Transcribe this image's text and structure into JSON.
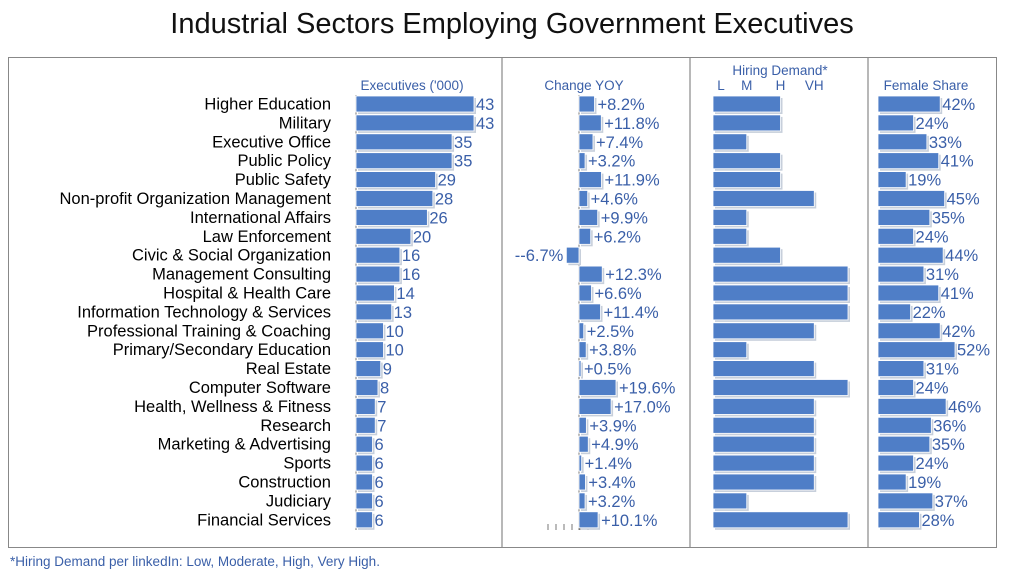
{
  "chart_data": {
    "type": "bar",
    "title": "Industrial Sectors Employing Government Executives",
    "footnote": "*Hiring Demand per linkedIn: Low, Moderate, High, Very High.",
    "categories": [
      "Higher Education",
      "Military",
      "Executive Office",
      "Public Policy",
      "Public Safety",
      "Non-profit Organization Management",
      "International Affairs",
      "Law Enforcement",
      "Civic & Social Organization",
      "Management Consulting",
      "Hospital & Health Care",
      "Information Technology & Services",
      "Professional Training & Coaching",
      "Primary/Secondary Education",
      "Real Estate",
      "Computer Software",
      "Health, Wellness & Fitness",
      "Research",
      "Marketing & Advertising",
      "Sports",
      "Construction",
      "Judiciary",
      "Financial Services"
    ],
    "series": [
      {
        "name": "Executives ('000)",
        "values": [
          43,
          43,
          35,
          35,
          29,
          28,
          26,
          20,
          16,
          16,
          14,
          13,
          10,
          10,
          9,
          8,
          7,
          7,
          6,
          6,
          6,
          6,
          6
        ],
        "labels": [
          "43",
          "43",
          "35",
          "35",
          "29",
          "28",
          "26",
          "20",
          "16",
          "16",
          "14",
          "13",
          "10",
          "10",
          "9",
          "8",
          "7",
          "7",
          "6",
          "6",
          "6",
          "6",
          "6"
        ]
      },
      {
        "name": "Change YOY",
        "values": [
          8.2,
          11.8,
          7.4,
          3.2,
          11.9,
          4.6,
          9.9,
          6.2,
          -6.7,
          12.3,
          6.6,
          11.4,
          2.5,
          3.8,
          0.5,
          19.6,
          17.0,
          3.9,
          4.9,
          1.4,
          3.4,
          3.2,
          10.1
        ],
        "labels": [
          "+8.2%",
          "+11.8%",
          "+7.4%",
          "+3.2%",
          "+11.9%",
          "+4.6%",
          "+9.9%",
          "+6.2%",
          "--6.7%",
          "+12.3%",
          "+6.6%",
          "+11.4%",
          "+2.5%",
          "+3.8%",
          "+0.5%",
          "+19.6%",
          "+17.0%",
          "+3.9%",
          "+4.9%",
          "+1.4%",
          "+3.4%",
          "+3.2%",
          "+10.1%"
        ]
      },
      {
        "name": "Hiring Demand*",
        "levels": [
          "L",
          "M",
          "H",
          "VH"
        ],
        "values": [
          2,
          2,
          1,
          2,
          2,
          3,
          1,
          1,
          2,
          4,
          4,
          4,
          3,
          1,
          3,
          4,
          3,
          3,
          3,
          3,
          3,
          1,
          4
        ]
      },
      {
        "name": "Female Share",
        "values": [
          42,
          24,
          33,
          41,
          19,
          45,
          35,
          24,
          44,
          31,
          41,
          22,
          42,
          52,
          31,
          24,
          46,
          36,
          35,
          24,
          19,
          37,
          28
        ],
        "labels": [
          "42%",
          "24%",
          "33%",
          "41%",
          "19%",
          "45%",
          "35%",
          "24%",
          "44%",
          "31%",
          "41%",
          "22%",
          "42%",
          "52%",
          "31%",
          "24%",
          "46%",
          "36%",
          "35%",
          "24%",
          "19%",
          "37%",
          "28%"
        ]
      }
    ],
    "xlim": {
      "executives": [
        0,
        43
      ],
      "change_yoy": [
        -6.7,
        19.6
      ],
      "hiring_demand": [
        0,
        4
      ],
      "female_share": [
        0,
        52
      ]
    }
  }
}
